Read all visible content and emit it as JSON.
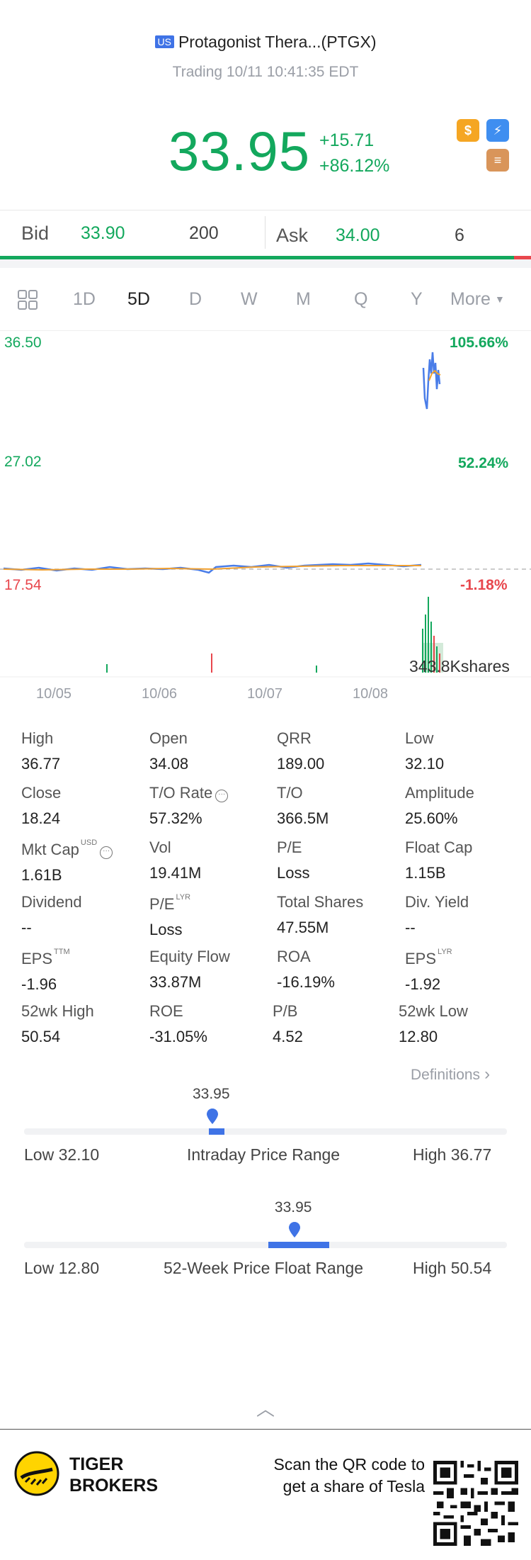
{
  "header": {
    "market_flag": "US",
    "title": "Protagonist Thera...(PTGX)",
    "status": "Trading 10/11 10:41:35 EDT",
    "price": "33.95",
    "change": "+15.71",
    "change_pct": "+86.12%"
  },
  "quote": {
    "bid_label": "Bid",
    "bid_price": "33.90",
    "bid_size": "200",
    "ask_label": "Ask",
    "ask_price": "34.00",
    "ask_size": "6"
  },
  "tabs": [
    "1D",
    "5D",
    "D",
    "W",
    "M",
    "Q",
    "Y",
    "More"
  ],
  "active_tab": "5D",
  "chart": {
    "y_labels_left": [
      "36.50",
      "27.02",
      "17.54"
    ],
    "y_labels_right": [
      "105.66%",
      "52.24%",
      "-1.18%"
    ],
    "volume_label": "343.8Kshares",
    "dates": [
      "10/05",
      "10/06",
      "10/07",
      "10/08"
    ]
  },
  "stats": [
    {
      "label": "High",
      "value": "36.77"
    },
    {
      "label": "Open",
      "value": "34.08"
    },
    {
      "label": "QRR",
      "value": "189.00"
    },
    {
      "label": "Low",
      "value": "32.10"
    },
    {
      "label": "Close",
      "value": "18.24"
    },
    {
      "label": "T/O Rate",
      "value": "57.32%"
    },
    {
      "label": "T/O",
      "value": "366.5M"
    },
    {
      "label": "Amplitude",
      "value": "25.60%"
    },
    {
      "label": "Mkt Cap",
      "value": "1.61B",
      "sup": "USD"
    },
    {
      "label": "Vol",
      "value": "19.41M"
    },
    {
      "label": "P/E",
      "value": "Loss"
    },
    {
      "label": "Float Cap",
      "value": "1.15B"
    },
    {
      "label": "Dividend",
      "value": "--"
    },
    {
      "label": "P/E",
      "value": "Loss",
      "sup": "LYR"
    },
    {
      "label": "Total Shares",
      "value": "47.55M"
    },
    {
      "label": "Div. Yield",
      "value": "--"
    },
    {
      "label": "EPS",
      "value": "-1.96",
      "sup": "TTM"
    },
    {
      "label": "Equity Flow",
      "value": "33.87M"
    },
    {
      "label": "ROA",
      "value": "-16.19%"
    },
    {
      "label": "EPS",
      "value": "-1.92",
      "sup": "LYR"
    },
    {
      "label": "52wk High",
      "value": "50.54"
    },
    {
      "label": "ROE",
      "value": "-31.05%"
    },
    {
      "label": "P/B",
      "value": "4.52"
    },
    {
      "label": "52wk Low",
      "value": "12.80"
    }
  ],
  "definitions_label": "Definitions",
  "intraday_range": {
    "current": "33.95",
    "low": "Low 32.10",
    "title": "Intraday Price Range",
    "high": "High 36.77",
    "fraction": 0.39
  },
  "week52_range": {
    "current": "33.95",
    "low": "Low 12.80",
    "title": "52-Week Price Float Range",
    "high": "High 50.54",
    "fraction": 0.56
  },
  "footer": {
    "brand_line1": "TIGER",
    "brand_line2": "BROKERS",
    "cta_line1": "Scan the QR code to",
    "cta_line2": "get a share of Tesla"
  },
  "colors": {
    "up": "#13a85d",
    "down": "#e8474d",
    "accent": "#3f73e6"
  }
}
